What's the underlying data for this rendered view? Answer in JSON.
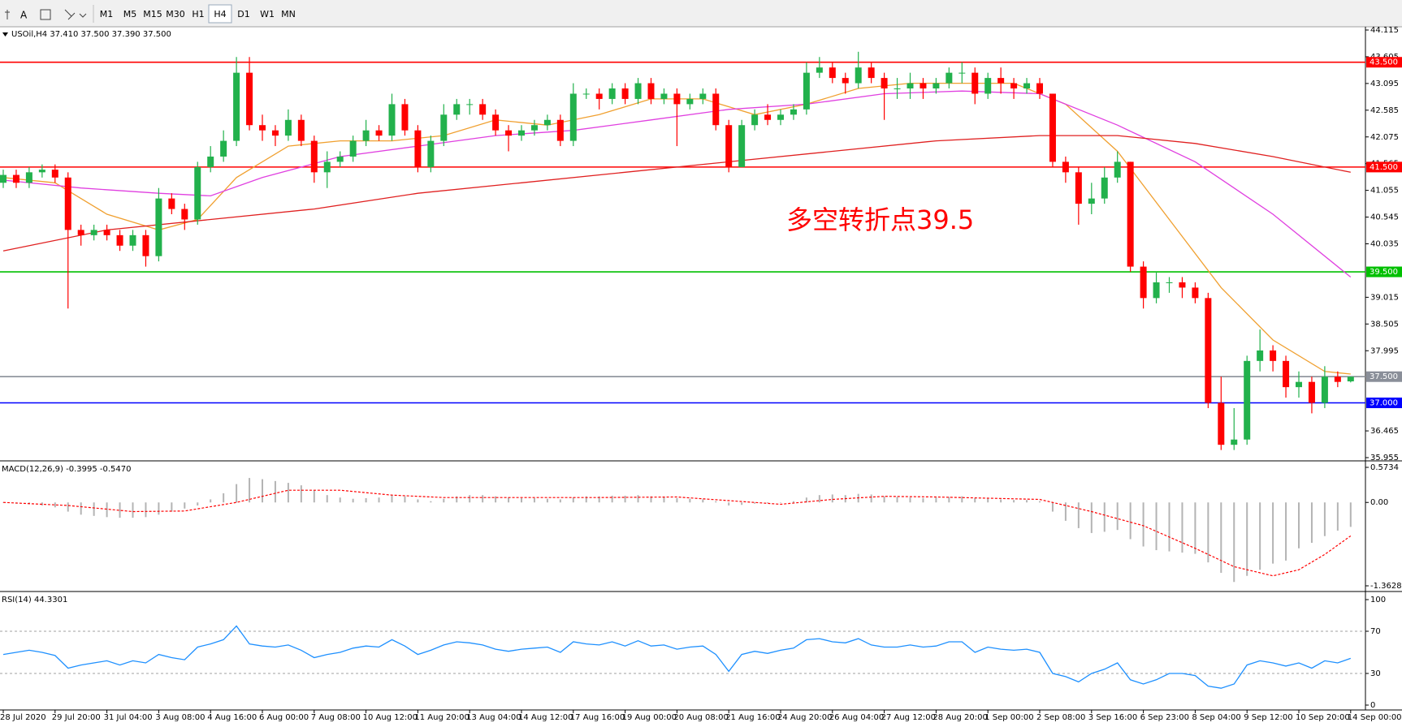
{
  "toolbar": {
    "buttons": [
      "M1",
      "M5",
      "M15",
      "M30",
      "H1",
      "H4",
      "D1",
      "W1",
      "MN"
    ],
    "active": "H4"
  },
  "chart_data": [
    {
      "type": "candlestick",
      "title": "USOil,H4 37.410 37.500 37.390 37.500",
      "annotation": "多空转折点39.5",
      "annotation_color": "#ff0000",
      "up_color": "#22b14c",
      "down_color": "#ff0000",
      "ylim": [
        35.955,
        44.115
      ],
      "yticks": [
        44.115,
        43.605,
        43.095,
        42.585,
        42.075,
        41.565,
        41.055,
        40.545,
        40.035,
        39.015,
        38.505,
        37.995,
        36.465,
        35.955
      ],
      "levels": [
        {
          "value": 43.5,
          "label": "43.500",
          "color": "#ff0000"
        },
        {
          "value": 41.5,
          "label": "41.500",
          "color": "#ff0000"
        },
        {
          "value": 39.5,
          "label": "39.500",
          "color": "#00c000"
        },
        {
          "value": 37.5,
          "label": "37.500",
          "color": "#8a8f99"
        },
        {
          "value": 37.0,
          "label": "37.000",
          "color": "#0000ff"
        }
      ],
      "categories": [
        "28 Jul 2020",
        null,
        null,
        null,
        "29 Jul 20:00",
        null,
        null,
        null,
        "31 Jul 04:00",
        null,
        null,
        null,
        "3 Aug 08:00",
        null,
        null,
        null,
        "4 Aug 16:00",
        null,
        null,
        null,
        "6 Aug 00:00",
        null,
        null,
        null,
        "7 Aug 08:00",
        null,
        null,
        null,
        "10 Aug 12:00",
        null,
        null,
        null,
        "11 Aug 20:00",
        null,
        null,
        null,
        "13 Aug 04:00",
        null,
        null,
        null,
        "14 Aug 12:00",
        null,
        null,
        null,
        "17 Aug 16:00",
        null,
        null,
        null,
        "19 Aug 00:00",
        null,
        null,
        null,
        "20 Aug 08:00",
        null,
        null,
        null,
        "21 Aug 16:00",
        null,
        null,
        null,
        "24 Aug 20:00",
        null,
        null,
        null,
        "26 Aug 04:00",
        null,
        null,
        null,
        "27 Aug 12:00",
        null,
        null,
        null,
        "28 Aug 20:00",
        null,
        null,
        null,
        "1 Sep 00:00",
        null,
        null,
        null,
        "2 Sep 08:00",
        null,
        null,
        null,
        "3 Sep 16:00",
        null,
        null,
        null,
        "6 Sep 23:00",
        null,
        null,
        null,
        "8 Sep 04:00",
        null,
        null,
        null,
        "9 Sep 12:00",
        null,
        null,
        null,
        "10 Sep 20:00",
        null,
        null,
        null,
        "14 Sep 00:00"
      ],
      "open": [
        41.2,
        41.35,
        41.2,
        41.4,
        41.45,
        41.3,
        40.3,
        40.2,
        40.3,
        40.2,
        40.0,
        40.2,
        39.8,
        40.9,
        40.7,
        40.5,
        41.5,
        41.7,
        42.0,
        43.3,
        42.3,
        42.2,
        42.1,
        42.4,
        42.0,
        41.4,
        41.6,
        41.7,
        42.0,
        42.2,
        42.1,
        42.7,
        42.2,
        41.5,
        42.0,
        42.5,
        42.7,
        42.7,
        42.5,
        42.2,
        42.1,
        42.2,
        42.3,
        42.4,
        42.0,
        42.9,
        42.9,
        42.8,
        43.0,
        42.8,
        43.1,
        42.8,
        42.9,
        42.7,
        42.8,
        42.9,
        42.3,
        41.5,
        42.3,
        42.5,
        42.4,
        42.5,
        42.6,
        43.3,
        43.4,
        43.2,
        43.1,
        43.4,
        43.2,
        43.0,
        43.0,
        43.1,
        43.0,
        43.1,
        43.3,
        43.3,
        42.9,
        43.2,
        43.1,
        43.0,
        43.1,
        42.9,
        41.6,
        41.4,
        40.8,
        40.9,
        41.3,
        41.6,
        39.6,
        39.0,
        39.3,
        39.3,
        39.2,
        39.0,
        37.0,
        36.2,
        36.3,
        37.8,
        38.0,
        37.8,
        37.3,
        37.4,
        37.0,
        37.5,
        37.41
      ],
      "high": [
        41.45,
        41.45,
        41.5,
        41.55,
        41.55,
        41.4,
        40.4,
        40.4,
        40.4,
        40.3,
        40.3,
        40.3,
        41.1,
        41.0,
        40.8,
        41.6,
        41.9,
        42.2,
        43.6,
        43.6,
        42.5,
        42.3,
        42.6,
        42.5,
        42.1,
        41.8,
        41.8,
        42.1,
        42.4,
        42.3,
        42.9,
        42.8,
        42.3,
        42.1,
        42.7,
        42.8,
        42.8,
        42.8,
        42.6,
        42.3,
        42.3,
        42.4,
        42.5,
        42.5,
        43.1,
        43.0,
        43.0,
        43.1,
        43.1,
        43.2,
        43.2,
        43.0,
        43.0,
        42.9,
        43.0,
        43.0,
        42.4,
        42.4,
        42.6,
        42.7,
        42.6,
        42.7,
        43.5,
        43.6,
        43.5,
        43.3,
        43.7,
        43.5,
        43.3,
        43.2,
        43.3,
        43.2,
        43.2,
        43.4,
        43.5,
        43.4,
        43.3,
        43.4,
        43.2,
        43.2,
        43.2,
        42.9,
        41.7,
        41.5,
        41.2,
        41.5,
        41.8,
        41.6,
        39.7,
        39.5,
        39.4,
        39.4,
        39.3,
        39.1,
        37.5,
        36.9,
        37.9,
        38.4,
        38.1,
        37.9,
        37.6,
        37.5,
        37.7,
        37.6,
        37.5
      ],
      "low": [
        41.1,
        41.1,
        41.1,
        41.3,
        41.2,
        38.8,
        40.0,
        40.1,
        40.1,
        39.9,
        39.9,
        39.6,
        39.7,
        40.6,
        40.3,
        40.4,
        41.4,
        41.6,
        41.9,
        42.2,
        42.0,
        41.9,
        42.0,
        41.9,
        41.2,
        41.1,
        41.5,
        41.6,
        41.9,
        42.0,
        42.0,
        42.1,
        41.4,
        41.4,
        41.9,
        42.4,
        42.5,
        42.4,
        42.1,
        41.8,
        42.0,
        42.1,
        42.2,
        41.9,
        41.9,
        42.8,
        42.6,
        42.7,
        42.7,
        42.7,
        42.7,
        42.7,
        41.9,
        42.6,
        42.7,
        42.2,
        41.4,
        41.5,
        42.2,
        42.3,
        42.3,
        42.4,
        42.5,
        43.2,
        43.1,
        42.9,
        43.0,
        43.1,
        42.4,
        42.8,
        42.8,
        42.8,
        42.9,
        43.0,
        43.1,
        42.7,
        42.8,
        42.9,
        42.8,
        42.9,
        42.8,
        41.5,
        41.2,
        40.4,
        40.6,
        40.8,
        41.2,
        39.5,
        38.8,
        38.9,
        39.1,
        39.0,
        38.9,
        36.9,
        36.1,
        36.1,
        36.2,
        37.6,
        37.6,
        37.1,
        37.1,
        36.8,
        36.9,
        37.3,
        37.39
      ],
      "close": [
        41.35,
        41.2,
        41.4,
        41.45,
        41.3,
        40.3,
        40.2,
        40.3,
        40.2,
        40.0,
        40.2,
        39.8,
        40.9,
        40.7,
        40.5,
        41.5,
        41.7,
        42.0,
        43.3,
        42.3,
        42.2,
        42.1,
        42.4,
        42.0,
        41.4,
        41.6,
        41.7,
        42.0,
        42.2,
        42.1,
        42.7,
        42.2,
        41.5,
        42.0,
        42.5,
        42.7,
        42.7,
        42.5,
        42.2,
        42.1,
        42.2,
        42.3,
        42.4,
        42.0,
        42.9,
        42.9,
        42.8,
        43.0,
        42.8,
        43.1,
        42.8,
        42.9,
        42.7,
        42.8,
        42.9,
        42.3,
        41.5,
        42.3,
        42.5,
        42.4,
        42.5,
        42.6,
        43.3,
        43.4,
        43.2,
        43.1,
        43.4,
        43.2,
        43.0,
        43.0,
        43.1,
        43.0,
        43.1,
        43.3,
        43.3,
        42.9,
        43.2,
        43.1,
        43.0,
        43.1,
        42.9,
        41.6,
        41.4,
        40.8,
        40.9,
        41.3,
        41.6,
        39.6,
        39.0,
        39.3,
        39.3,
        39.2,
        39.0,
        37.0,
        36.2,
        36.3,
        37.8,
        38.0,
        37.8,
        37.3,
        37.4,
        37.0,
        37.5,
        37.4,
        37.5
      ],
      "ma": [
        {
          "color": "#f0a030",
          "x": [
            0,
            4,
            8,
            12,
            15,
            18,
            22,
            26,
            30,
            34,
            38,
            42,
            46,
            50,
            54,
            58,
            62,
            66,
            70,
            74,
            78,
            82,
            86,
            90,
            94,
            98,
            102,
            104
          ],
          "values": [
            41.3,
            41.2,
            40.6,
            40.3,
            40.5,
            41.3,
            41.9,
            42.0,
            42.0,
            42.1,
            42.4,
            42.3,
            42.5,
            42.8,
            42.8,
            42.5,
            42.7,
            43.0,
            43.1,
            43.1,
            43.1,
            42.7,
            41.8,
            40.5,
            39.2,
            38.2,
            37.6,
            37.55
          ]
        },
        {
          "color": "#e040e0",
          "x": [
            0,
            6,
            12,
            16,
            20,
            26,
            32,
            38,
            44,
            50,
            56,
            62,
            68,
            74,
            80,
            86,
            92,
            98,
            104
          ],
          "values": [
            41.25,
            41.1,
            41.0,
            40.95,
            41.3,
            41.7,
            41.9,
            42.1,
            42.2,
            42.4,
            42.6,
            42.7,
            42.9,
            42.95,
            42.9,
            42.3,
            41.6,
            40.6,
            39.4
          ]
        },
        {
          "color": "#e02020",
          "x": [
            0,
            8,
            16,
            24,
            32,
            40,
            48,
            56,
            64,
            72,
            80,
            86,
            92,
            98,
            104
          ],
          "values": [
            39.9,
            40.3,
            40.5,
            40.7,
            41.0,
            41.2,
            41.4,
            41.6,
            41.8,
            42.0,
            42.1,
            42.1,
            41.95,
            41.7,
            41.4
          ]
        }
      ]
    },
    {
      "type": "macd",
      "title": "MACD(12,26,9) -0.3995 -0.5470",
      "ylim": [
        -1.3628,
        0.5734
      ],
      "yticks": [
        0.5734,
        {
          "value": 0,
          "label": "0.00"
        },
        -1.3628
      ],
      "histogram": {
        "color": "#b4b4b4",
        "values": [
          0.0,
          -0.02,
          -0.03,
          -0.05,
          -0.08,
          -0.15,
          -0.2,
          -0.22,
          -0.24,
          -0.25,
          -0.25,
          -0.24,
          -0.2,
          -0.15,
          -0.1,
          -0.05,
          0.05,
          0.15,
          0.3,
          0.4,
          0.38,
          0.35,
          0.32,
          0.28,
          0.2,
          0.12,
          0.08,
          0.06,
          0.07,
          0.08,
          0.12,
          0.1,
          0.05,
          0.02,
          0.06,
          0.1,
          0.12,
          0.12,
          0.1,
          0.08,
          0.07,
          0.07,
          0.06,
          0.05,
          0.08,
          0.1,
          0.1,
          0.11,
          0.11,
          0.12,
          0.1,
          0.09,
          0.07,
          0.06,
          0.05,
          0.02,
          -0.05,
          -0.04,
          -0.02,
          -0.01,
          0.0,
          0.02,
          0.08,
          0.12,
          0.13,
          0.12,
          0.14,
          0.13,
          0.1,
          0.09,
          0.08,
          0.07,
          0.08,
          0.09,
          0.1,
          0.07,
          0.06,
          0.05,
          0.04,
          0.04,
          0.02,
          -0.15,
          -0.3,
          -0.42,
          -0.5,
          -0.48,
          -0.45,
          -0.6,
          -0.72,
          -0.78,
          -0.8,
          -0.82,
          -0.84,
          -0.98,
          -1.15,
          -1.3,
          -1.2,
          -1.1,
          -1.0,
          -0.95,
          -0.75,
          -0.66,
          -0.55,
          -0.46,
          -0.3995
        ]
      },
      "signal": {
        "color": "#ff0000",
        "x": [
          0,
          5,
          10,
          14,
          18,
          22,
          26,
          30,
          34,
          40,
          46,
          52,
          56,
          60,
          64,
          68,
          72,
          76,
          80,
          84,
          88,
          92,
          95,
          98,
          100,
          102,
          104
        ],
        "values": [
          0.0,
          -0.05,
          -0.15,
          -0.14,
          0.0,
          0.2,
          0.2,
          0.12,
          0.08,
          0.08,
          0.08,
          0.09,
          0.03,
          -0.03,
          0.05,
          0.1,
          0.09,
          0.07,
          0.05,
          -0.15,
          -0.38,
          -0.75,
          -1.05,
          -1.2,
          -1.1,
          -0.85,
          -0.547
        ]
      }
    },
    {
      "type": "line",
      "title": "RSI(14) 44.3301",
      "color": "#1e90ff",
      "ylim": [
        0,
        100
      ],
      "yticks": [
        100,
        70,
        30,
        0
      ],
      "levels": [
        70,
        30
      ],
      "values": [
        48,
        50,
        52,
        50,
        47,
        35,
        38,
        40,
        42,
        38,
        42,
        40,
        48,
        45,
        43,
        55,
        58,
        62,
        75,
        58,
        56,
        55,
        57,
        52,
        45,
        48,
        50,
        54,
        56,
        55,
        62,
        56,
        48,
        52,
        57,
        60,
        59,
        57,
        53,
        51,
        53,
        54,
        55,
        50,
        60,
        58,
        57,
        60,
        56,
        61,
        56,
        57,
        53,
        55,
        56,
        48,
        32,
        48,
        51,
        49,
        52,
        54,
        62,
        63,
        60,
        59,
        63,
        57,
        55,
        55,
        57,
        55,
        56,
        60,
        60,
        50,
        55,
        53,
        52,
        53,
        50,
        30,
        27,
        22,
        30,
        34,
        40,
        24,
        20,
        24,
        30,
        30,
        28,
        18,
        16,
        20,
        38,
        42,
        40,
        37,
        40,
        35,
        42,
        40,
        44.3301
      ]
    }
  ]
}
